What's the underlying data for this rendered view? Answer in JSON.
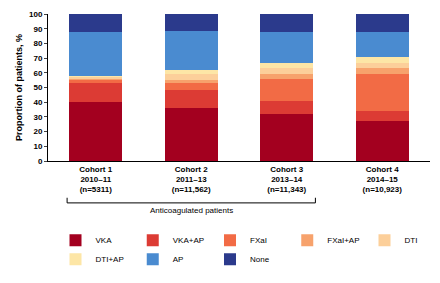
{
  "chart_data": {
    "type": "bar",
    "stacked": true,
    "y_label": "Proportion of patients, %",
    "categories": [
      "Cohort 1\n2010–11\n(n=5311)",
      "Cohort 2\n2011–13\n(n=11,562)",
      "Cohort 3\n2013–14\n(n=11,343)",
      "Cohort 4\n2014–15\n(n=10,923)"
    ],
    "series": [
      {
        "name": "VKA",
        "color": "#a3001f",
        "values": [
          40,
          36,
          32,
          27
        ]
      },
      {
        "name": "VKA+AP",
        "color": "#dc3b34",
        "values": [
          13,
          12.5,
          9,
          7
        ]
      },
      {
        "name": "FXaI",
        "color": "#f26b45",
        "values": [
          2,
          4.5,
          15,
          25
        ]
      },
      {
        "name": "FXaI+AP",
        "color": "#f7a26c",
        "values": [
          1,
          2,
          3,
          4.5
        ]
      },
      {
        "name": "DTI",
        "color": "#fccf9a",
        "values": [
          1,
          4,
          4,
          3.5
        ]
      },
      {
        "name": "DTI+AP",
        "color": "#fde6a6",
        "values": [
          0.5,
          3,
          4,
          4
        ]
      },
      {
        "name": "AP",
        "color": "#4a8bd0",
        "values": [
          30.5,
          26.5,
          20.5,
          17
        ]
      },
      {
        "name": "None",
        "color": "#2b3a8c",
        "values": [
          12,
          11.5,
          12.5,
          12
        ]
      }
    ],
    "ylim": [
      0,
      100
    ],
    "yticks": [
      0,
      10,
      20,
      30,
      40,
      50,
      60,
      70,
      80,
      90,
      100
    ],
    "grid": false,
    "legend": "bottom",
    "annotations": [
      "Anticoagulated patients"
    ]
  }
}
